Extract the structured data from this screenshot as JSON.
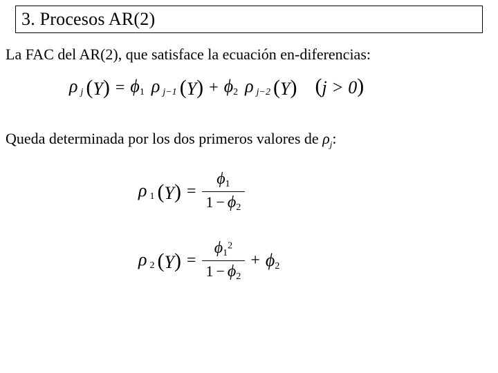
{
  "title": "3. Procesos AR(2)",
  "line1": "La FAC del AR(2), que satisface la ecuación en-diferencias:",
  "line2_a": "Queda determinada por los dos primeros valores de ",
  "line2_b": ":",
  "symbols": {
    "rho": "ρ",
    "phi": "ϕ",
    "Y": "Y",
    "j": "j",
    "gt0": "j > 0",
    "one": "1",
    "two": "2",
    "jm1": "j−1",
    "jm2": "j−2",
    "minus": "−",
    "plus": "+",
    "eq": "="
  },
  "style": {
    "background": "#ffffff",
    "text_color": "#000000",
    "title_fontsize": 26,
    "body_fontsize": 22,
    "border_color": "#000000"
  }
}
